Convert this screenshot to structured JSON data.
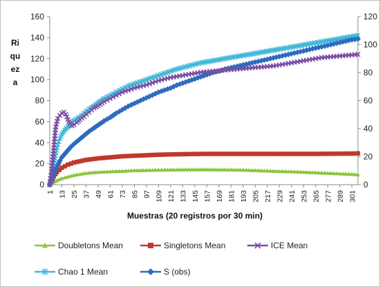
{
  "chart_data": {
    "type": "line",
    "title": "",
    "xlabel": "Muestras (20 registros por 30 min)",
    "ylabel_lines": [
      "Ri",
      "qu",
      "ez",
      "a"
    ],
    "ylim": [
      0,
      160
    ],
    "y2lim": [
      0,
      120
    ],
    "yticks": [
      "0",
      "20",
      "40",
      "60",
      "80",
      "100",
      "120",
      "140",
      "160"
    ],
    "y2ticks": [
      "0",
      "20",
      "40",
      "60",
      "80",
      "100",
      "120"
    ],
    "xticks": [
      "1",
      "13",
      "25",
      "37",
      "49",
      "61",
      "73",
      "85",
      "97",
      "109",
      "121",
      "133",
      "145",
      "157",
      "169",
      "181",
      "193",
      "205",
      "217",
      "229",
      "241",
      "253",
      "265",
      "277",
      "289",
      "301"
    ],
    "x_max": 307,
    "grid": false,
    "legend_position": "bottom",
    "series": [
      {
        "name": "Doubletons Mean",
        "color": "#8cc63f",
        "marker": "triangle",
        "axis": "left",
        "points": [
          [
            1,
            0
          ],
          [
            4,
            2
          ],
          [
            8,
            4
          ],
          [
            13,
            6
          ],
          [
            25,
            9
          ],
          [
            37,
            11
          ],
          [
            49,
            12
          ],
          [
            61,
            12.5
          ],
          [
            73,
            13
          ],
          [
            85,
            13.5
          ],
          [
            97,
            13.8
          ],
          [
            109,
            14
          ],
          [
            121,
            14.2
          ],
          [
            133,
            14.3
          ],
          [
            145,
            14.4
          ],
          [
            157,
            14.4
          ],
          [
            169,
            14.3
          ],
          [
            181,
            14.2
          ],
          [
            193,
            14
          ],
          [
            205,
            13.6
          ],
          [
            217,
            13.2
          ],
          [
            229,
            12.8
          ],
          [
            241,
            12.5
          ],
          [
            253,
            12
          ],
          [
            265,
            11.5
          ],
          [
            277,
            11
          ],
          [
            289,
            10.5
          ],
          [
            301,
            10
          ],
          [
            307,
            9.5
          ]
        ]
      },
      {
        "name": "Singletons Mean",
        "color": "#c0392b",
        "marker": "square",
        "axis": "left",
        "points": [
          [
            1,
            0
          ],
          [
            3,
            4
          ],
          [
            5,
            8
          ],
          [
            8,
            12
          ],
          [
            13,
            16
          ],
          [
            19,
            19
          ],
          [
            25,
            21
          ],
          [
            37,
            23.5
          ],
          [
            49,
            25
          ],
          [
            61,
            26
          ],
          [
            73,
            27
          ],
          [
            85,
            27.5
          ],
          [
            97,
            28
          ],
          [
            109,
            28.5
          ],
          [
            121,
            28.8
          ],
          [
            133,
            29
          ],
          [
            145,
            29.2
          ],
          [
            157,
            29.3
          ],
          [
            169,
            29.3
          ],
          [
            181,
            29.3
          ],
          [
            193,
            29.3
          ],
          [
            205,
            29.3
          ],
          [
            217,
            29.3
          ],
          [
            229,
            29.3
          ],
          [
            241,
            29.3
          ],
          [
            253,
            29.3
          ],
          [
            265,
            29.3
          ],
          [
            277,
            29.4
          ],
          [
            289,
            29.5
          ],
          [
            301,
            29.6
          ],
          [
            307,
            29.8
          ]
        ]
      },
      {
        "name": "ICE Mean",
        "color": "#7b4fa3",
        "marker": "x",
        "axis": "left",
        "points": [
          [
            1,
            0
          ],
          [
            3,
            15
          ],
          [
            5,
            35
          ],
          [
            7,
            55
          ],
          [
            9,
            63
          ],
          [
            11,
            66
          ],
          [
            13,
            68
          ],
          [
            15,
            69
          ],
          [
            17,
            67
          ],
          [
            19,
            62
          ],
          [
            21,
            58
          ],
          [
            23,
            56
          ],
          [
            25,
            57
          ],
          [
            28,
            59
          ],
          [
            31,
            62
          ],
          [
            35,
            65
          ],
          [
            40,
            69
          ],
          [
            45,
            73
          ],
          [
            49,
            75
          ],
          [
            55,
            79
          ],
          [
            61,
            82
          ],
          [
            67,
            85
          ],
          [
            73,
            88
          ],
          [
            79,
            90
          ],
          [
            85,
            92
          ],
          [
            91,
            93.5
          ],
          [
            97,
            95
          ],
          [
            103,
            97
          ],
          [
            109,
            99
          ],
          [
            115,
            100.5
          ],
          [
            121,
            102
          ],
          [
            127,
            103
          ],
          [
            133,
            104
          ],
          [
            139,
            105
          ],
          [
            145,
            106
          ],
          [
            151,
            107
          ],
          [
            157,
            107.5
          ],
          [
            163,
            108
          ],
          [
            169,
            108.5
          ],
          [
            175,
            109
          ],
          [
            181,
            109.5
          ],
          [
            187,
            110
          ],
          [
            193,
            110.5
          ],
          [
            199,
            111
          ],
          [
            205,
            111.5
          ],
          [
            211,
            112
          ],
          [
            217,
            112.5
          ],
          [
            223,
            113
          ],
          [
            229,
            114
          ],
          [
            235,
            115
          ],
          [
            241,
            116
          ],
          [
            247,
            117
          ],
          [
            253,
            118
          ],
          [
            259,
            119
          ],
          [
            265,
            120
          ],
          [
            271,
            121
          ],
          [
            277,
            121.5
          ],
          [
            283,
            122
          ],
          [
            289,
            122.5
          ],
          [
            295,
            123
          ],
          [
            301,
            123.5
          ],
          [
            307,
            124
          ]
        ]
      },
      {
        "name": "Chao 1 Mean",
        "color": "#3fb8d8",
        "marker": "star",
        "axis": "left",
        "points": [
          [
            1,
            0
          ],
          [
            3,
            10
          ],
          [
            5,
            20
          ],
          [
            7,
            30
          ],
          [
            9,
            38
          ],
          [
            11,
            44
          ],
          [
            13,
            48
          ],
          [
            16,
            52
          ],
          [
            19,
            55
          ],
          [
            22,
            58
          ],
          [
            25,
            61
          ],
          [
            30,
            64
          ],
          [
            35,
            68
          ],
          [
            40,
            72
          ],
          [
            45,
            75
          ],
          [
            49,
            78
          ],
          [
            55,
            82
          ],
          [
            61,
            85
          ],
          [
            67,
            88
          ],
          [
            73,
            91
          ],
          [
            79,
            94
          ],
          [
            85,
            96
          ],
          [
            91,
            98
          ],
          [
            97,
            100
          ],
          [
            103,
            102
          ],
          [
            109,
            104
          ],
          [
            115,
            106
          ],
          [
            121,
            108
          ],
          [
            127,
            110
          ],
          [
            133,
            111.5
          ],
          [
            139,
            113
          ],
          [
            145,
            114.5
          ],
          [
            151,
            116
          ],
          [
            157,
            117
          ],
          [
            163,
            118
          ],
          [
            169,
            119
          ],
          [
            175,
            120
          ],
          [
            181,
            121
          ],
          [
            187,
            122
          ],
          [
            193,
            123
          ],
          [
            199,
            124
          ],
          [
            205,
            125
          ],
          [
            211,
            126
          ],
          [
            217,
            127
          ],
          [
            223,
            128
          ],
          [
            229,
            129
          ],
          [
            235,
            130
          ],
          [
            241,
            131
          ],
          [
            247,
            132
          ],
          [
            253,
            133
          ],
          [
            259,
            134
          ],
          [
            265,
            135
          ],
          [
            271,
            136
          ],
          [
            277,
            137
          ],
          [
            283,
            138
          ],
          [
            289,
            139
          ],
          [
            295,
            140
          ],
          [
            301,
            141
          ],
          [
            307,
            142
          ]
        ]
      },
      {
        "name": "S (obs)",
        "color": "#2e6bbf",
        "marker": "diamond",
        "axis": "right",
        "points": [
          [
            1,
            0
          ],
          [
            3,
            4
          ],
          [
            5,
            8
          ],
          [
            7,
            11
          ],
          [
            9,
            14
          ],
          [
            11,
            17
          ],
          [
            13,
            19.5
          ],
          [
            16,
            22
          ],
          [
            19,
            24.5
          ],
          [
            22,
            27
          ],
          [
            25,
            29
          ],
          [
            30,
            32
          ],
          [
            35,
            35
          ],
          [
            40,
            38
          ],
          [
            45,
            40.5
          ],
          [
            49,
            42.5
          ],
          [
            55,
            45.5
          ],
          [
            61,
            48
          ],
          [
            67,
            51
          ],
          [
            73,
            53.5
          ],
          [
            79,
            56
          ],
          [
            85,
            58
          ],
          [
            91,
            60
          ],
          [
            97,
            62
          ],
          [
            103,
            64
          ],
          [
            109,
            66
          ],
          [
            115,
            67.5
          ],
          [
            121,
            69
          ],
          [
            127,
            71
          ],
          [
            133,
            72.5
          ],
          [
            139,
            74
          ],
          [
            145,
            75.5
          ],
          [
            151,
            77
          ],
          [
            157,
            78.5
          ],
          [
            163,
            80
          ],
          [
            169,
            81
          ],
          [
            175,
            82.5
          ],
          [
            181,
            83.5
          ],
          [
            187,
            84.5
          ],
          [
            193,
            85.5
          ],
          [
            199,
            86.5
          ],
          [
            205,
            87.5
          ],
          [
            211,
            88.5
          ],
          [
            217,
            89.5
          ],
          [
            223,
            90.5
          ],
          [
            229,
            91.5
          ],
          [
            235,
            92.5
          ],
          [
            241,
            93.5
          ],
          [
            247,
            94.5
          ],
          [
            253,
            95.5
          ],
          [
            259,
            96.5
          ],
          [
            265,
            97.5
          ],
          [
            271,
            98.5
          ],
          [
            277,
            99.5
          ],
          [
            283,
            100.5
          ],
          [
            289,
            101.5
          ],
          [
            295,
            102.5
          ],
          [
            301,
            103.5
          ],
          [
            307,
            104
          ]
        ]
      }
    ]
  }
}
